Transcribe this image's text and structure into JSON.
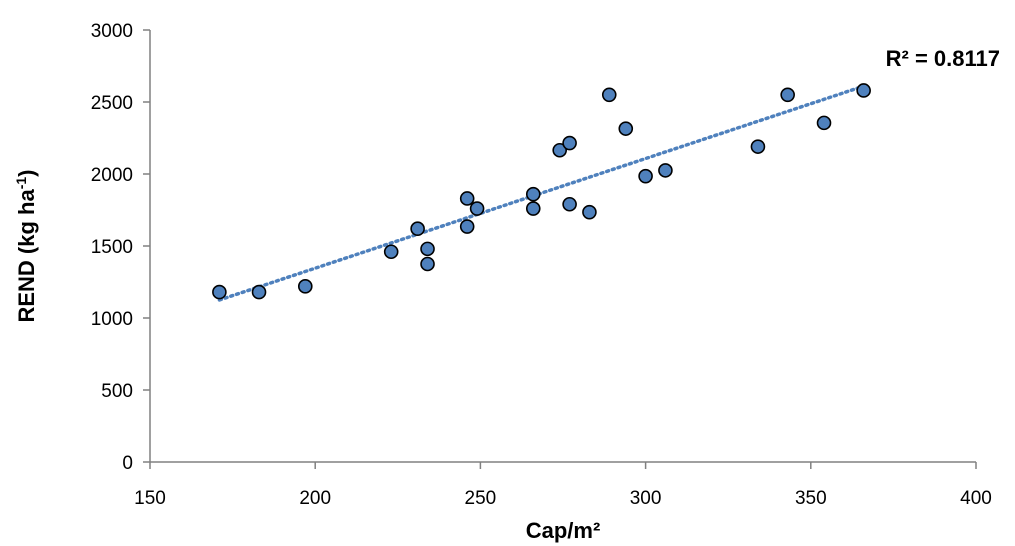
{
  "chart_data": {
    "type": "scatter",
    "title": "",
    "xlabel": "Cap/m²",
    "ylabel_main": "REND (kg ha",
    "ylabel_sup": "-1",
    "ylabel_end": ")",
    "xlim": [
      150,
      400
    ],
    "ylim": [
      0,
      3000
    ],
    "xticks": [
      150,
      200,
      250,
      300,
      350,
      400
    ],
    "yticks": [
      0,
      500,
      1000,
      1500,
      2000,
      2500,
      3000
    ],
    "grid": false,
    "legend": "none",
    "marker_color": "#4F81BD",
    "marker_edge_color": "#000000",
    "trendline_color": "#4F81BD",
    "annotation": "R² = 0.8117",
    "points": [
      {
        "x": 171,
        "y": 1180
      },
      {
        "x": 183,
        "y": 1180
      },
      {
        "x": 197,
        "y": 1220
      },
      {
        "x": 223,
        "y": 1460
      },
      {
        "x": 231,
        "y": 1620
      },
      {
        "x": 234,
        "y": 1480
      },
      {
        "x": 234,
        "y": 1375
      },
      {
        "x": 246,
        "y": 1830
      },
      {
        "x": 246,
        "y": 1635
      },
      {
        "x": 249,
        "y": 1760
      },
      {
        "x": 266,
        "y": 1860
      },
      {
        "x": 266,
        "y": 1760
      },
      {
        "x": 274,
        "y": 2165
      },
      {
        "x": 277,
        "y": 2215
      },
      {
        "x": 277,
        "y": 1790
      },
      {
        "x": 283,
        "y": 1735
      },
      {
        "x": 289,
        "y": 2550
      },
      {
        "x": 294,
        "y": 2315
      },
      {
        "x": 300,
        "y": 1985
      },
      {
        "x": 306,
        "y": 2025
      },
      {
        "x": 334,
        "y": 2190
      },
      {
        "x": 343,
        "y": 2550
      },
      {
        "x": 354,
        "y": 2355
      },
      {
        "x": 366,
        "y": 2580
      }
    ],
    "trendline": {
      "x": [
        171,
        366
      ],
      "y": [
        1125,
        2610
      ]
    }
  }
}
